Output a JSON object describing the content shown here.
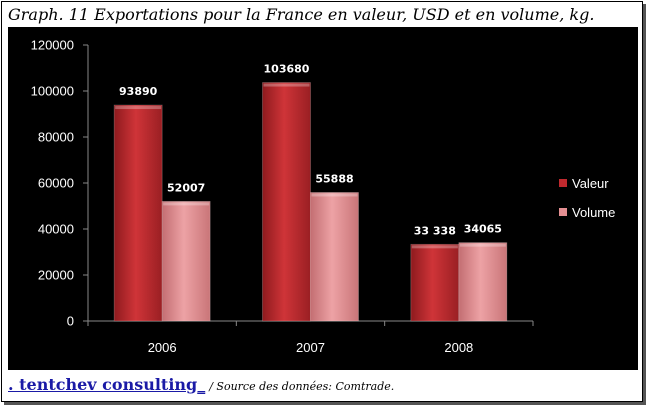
{
  "title": "Graph. 11 Exportations pour la France en valeur,  USD et en volume, kg.",
  "footer": {
    "brand": ". tentchev consulting_",
    "source": "/ Source des données: Comtrade."
  },
  "colors": {
    "background": "#000000",
    "valeur": "#c0292e",
    "volume": "#e48f92"
  },
  "chart_data": {
    "type": "bar",
    "categories": [
      "2006",
      "2007",
      "2008"
    ],
    "series": [
      {
        "name": "Valeur",
        "values": [
          93890,
          103680,
          33338
        ],
        "labels": [
          "93890",
          "103680",
          "33 338"
        ]
      },
      {
        "name": "Volume",
        "values": [
          52007,
          55888,
          34065
        ],
        "labels": [
          "52007",
          "55888",
          "34065"
        ]
      }
    ],
    "ylim": [
      0,
      120000
    ],
    "yticks": [
      "0",
      "20000",
      "40000",
      "60000",
      "80000",
      "100000",
      "120000"
    ],
    "legend_position": "right",
    "grid": false
  }
}
